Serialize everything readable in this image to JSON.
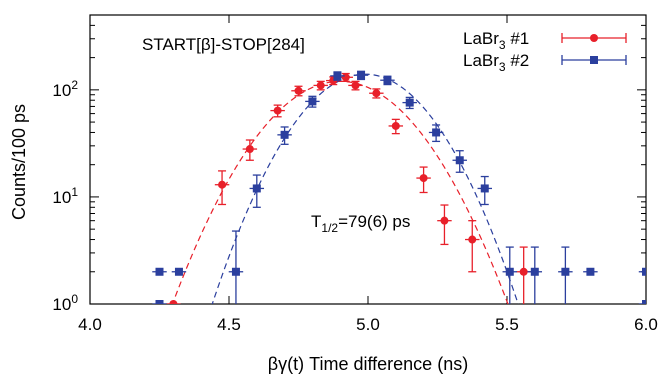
{
  "chart_data": {
    "type": "scatter",
    "title": "",
    "annotation": "START[β]-STOP[284]",
    "halflife_label": {
      "prefix": "T",
      "sub": "1/2",
      "suffix": "=79(6) ps"
    },
    "xlabel": "βγ(t) Time difference (ns)",
    "ylabel": "Counts/100 ps",
    "xlim": [
      4.0,
      6.0
    ],
    "ylim": [
      1,
      500
    ],
    "yscale": "log",
    "grid": false,
    "legend_position": "top-right",
    "x_ticks": [
      "4.0",
      "4.5",
      "5.0",
      "5.5",
      "6.0"
    ],
    "x_tick_values": [
      4.0,
      4.5,
      5.0,
      5.5,
      6.0
    ],
    "y_ticks": [
      {
        "value": 1,
        "base": "10",
        "exp": "0"
      },
      {
        "value": 10,
        "base": "10",
        "exp": "1"
      },
      {
        "value": 100,
        "base": "10",
        "exp": "2"
      }
    ],
    "series": [
      {
        "name": "LaBr",
        "name_sub": "3",
        "name_suffix": " #1",
        "color": "#e8202a",
        "marker": "circle",
        "points": [
          {
            "x": 4.3,
            "y": 1.0
          },
          {
            "x": 4.475,
            "y": 13.0,
            "lo": 8.5,
            "hi": 17.5
          },
          {
            "x": 4.575,
            "y": 28.0,
            "lo": 22.0,
            "hi": 34.0
          },
          {
            "x": 4.675,
            "y": 64.0,
            "lo": 56.0,
            "hi": 72.0
          },
          {
            "x": 4.75,
            "y": 98.0,
            "lo": 88.0,
            "hi": 108.0
          },
          {
            "x": 4.83,
            "y": 110.0,
            "lo": 100.0,
            "hi": 120.0
          },
          {
            "x": 4.875,
            "y": 122.0,
            "lo": 112.0,
            "hi": 132.0
          },
          {
            "x": 4.92,
            "y": 131.0,
            "lo": 120.0,
            "hi": 142.0
          },
          {
            "x": 4.955,
            "y": 110.0,
            "lo": 100.0,
            "hi": 120.0
          },
          {
            "x": 5.03,
            "y": 93.0,
            "lo": 84.0,
            "hi": 102.0
          },
          {
            "x": 5.1,
            "y": 46.0,
            "lo": 39.0,
            "hi": 53.0
          },
          {
            "x": 5.2,
            "y": 15.0,
            "lo": 11.0,
            "hi": 19.0
          },
          {
            "x": 5.275,
            "y": 6.0,
            "lo": 3.6,
            "hi": 8.4
          },
          {
            "x": 5.375,
            "y": 4.0,
            "lo": 2.0,
            "hi": 6.0
          },
          {
            "x": 5.56,
            "y": 2.0,
            "lo": 0.6,
            "hi": 3.4
          }
        ],
        "fit_label": "",
        "fit": {
          "peak": 120,
          "center": 4.9,
          "sigma": 0.195
        }
      },
      {
        "name": "LaBr",
        "name_sub": "3",
        "name_suffix": " #2",
        "color": "#2b3f9e",
        "marker": "square",
        "points": [
          {
            "x": 4.25,
            "y": 1.0
          },
          {
            "x": 4.25,
            "y": 2.0
          },
          {
            "x": 4.32,
            "y": 2.0
          },
          {
            "x": 4.525,
            "y": 2.0,
            "lo": 0.6,
            "hi": 4.8
          },
          {
            "x": 4.6,
            "y": 12.0,
            "lo": 8.0,
            "hi": 16.0
          },
          {
            "x": 4.7,
            "y": 38.0,
            "lo": 31.0,
            "hi": 45.0
          },
          {
            "x": 4.8,
            "y": 78.0,
            "lo": 69.0,
            "hi": 87.0
          },
          {
            "x": 4.89,
            "y": 135.0,
            "lo": 123.0,
            "hi": 147.0
          },
          {
            "x": 4.975,
            "y": 137.0,
            "lo": 125.0,
            "hi": 149.0
          },
          {
            "x": 5.07,
            "y": 123.0,
            "lo": 112.0,
            "hi": 134.0
          },
          {
            "x": 5.15,
            "y": 76.0,
            "lo": 67.0,
            "hi": 85.0
          },
          {
            "x": 5.245,
            "y": 40.0,
            "lo": 33.0,
            "hi": 47.0
          },
          {
            "x": 5.33,
            "y": 22.0,
            "lo": 17.0,
            "hi": 27.0
          },
          {
            "x": 5.42,
            "y": 12.0,
            "lo": 8.5,
            "hi": 15.5
          },
          {
            "x": 5.51,
            "y": 2.0,
            "lo": 0.6,
            "hi": 3.4
          },
          {
            "x": 5.6,
            "y": 2.0,
            "lo": 0.6,
            "hi": 3.4
          },
          {
            "x": 5.71,
            "y": 2.0,
            "lo": 0.6,
            "hi": 3.4
          },
          {
            "x": 5.8,
            "y": 2.0
          },
          {
            "x": 6.0,
            "y": 1.0
          },
          {
            "x": 6.0,
            "y": 2.0
          }
        ],
        "fit_label": "",
        "fit": {
          "peak": 140,
          "center": 4.99,
          "sigma": 0.175
        }
      }
    ]
  }
}
